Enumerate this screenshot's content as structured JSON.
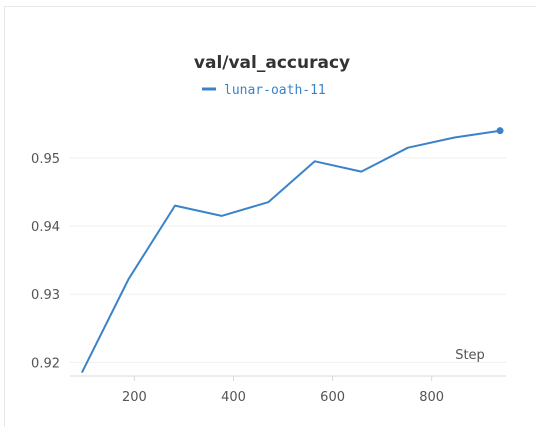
{
  "chart_data": {
    "type": "line",
    "title": "val/val_accuracy",
    "xlabel": "Step",
    "ylabel": "",
    "xlim": [
      70,
      950
    ],
    "ylim": [
      0.918,
      0.9585
    ],
    "xticks": [
      200,
      400,
      600,
      800
    ],
    "xtick_labels": [
      "200",
      "400",
      "600",
      "800"
    ],
    "yticks": [
      0.92,
      0.93,
      0.94,
      0.95
    ],
    "ytick_labels": [
      "0.92",
      "0.93",
      "0.94",
      "0.95"
    ],
    "grid": true,
    "legend_position": "top-center",
    "series": [
      {
        "name": "lunar-oath-11",
        "color": "#3b83c9",
        "x": [
          94,
          188,
          282,
          376,
          470,
          564,
          658,
          752,
          846,
          938
        ],
        "y": [
          0.9185,
          0.9322,
          0.943,
          0.9415,
          0.9435,
          0.9495,
          0.948,
          0.9515,
          0.953,
          0.954
        ]
      }
    ]
  }
}
